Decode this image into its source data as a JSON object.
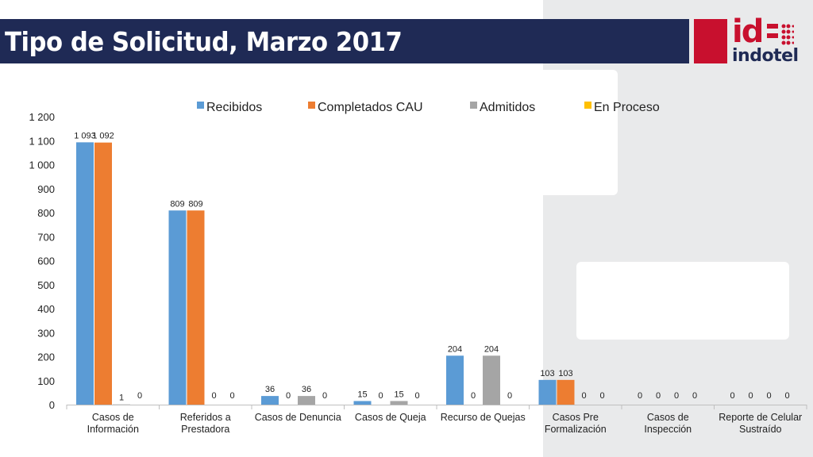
{
  "slide": {
    "title": "Tipo de Solicitud, Marzo 2017",
    "logo_text": "indotel",
    "logo_mark": "id",
    "brand_color": "#c8102e",
    "title_bar_color": "#1f2a55"
  },
  "chart_data": {
    "type": "bar",
    "title": "",
    "xlabel": "",
    "ylabel": "",
    "ylim": [
      0,
      1200
    ],
    "yticks": [
      0,
      100,
      200,
      300,
      400,
      500,
      600,
      700,
      800,
      900,
      1000,
      1100,
      1200
    ],
    "ytick_labels": [
      "0",
      "100",
      "200",
      "300",
      "400",
      "500",
      "600",
      "700",
      "800",
      "900",
      "1 000",
      "1 100",
      "1 200"
    ],
    "grid": false,
    "legend_position": "top",
    "categories": [
      [
        "Casos de",
        "Información"
      ],
      [
        "Referidos a",
        "Prestadora"
      ],
      [
        "Casos de Denuncia"
      ],
      [
        "Casos de Queja"
      ],
      [
        "Recurso de Quejas"
      ],
      [
        "Casos Pre",
        "Formalización"
      ],
      [
        "Casos de",
        "Inspección"
      ],
      [
        "Reporte de Celular",
        "Sustraído"
      ]
    ],
    "series": [
      {
        "name": "Recibidos",
        "color": "#5b9bd5",
        "values": [
          1093,
          809,
          36,
          15,
          204,
          103,
          0,
          0
        ],
        "labels": [
          "1 093",
          "809",
          "36",
          "15",
          "204",
          "103",
          "0",
          "0"
        ]
      },
      {
        "name": "Completados CAU",
        "color": "#ed7d31",
        "values": [
          1092,
          809,
          0,
          0,
          0,
          103,
          0,
          0
        ],
        "labels": [
          "1 092",
          "809",
          "0",
          "0",
          "0",
          "103",
          "0",
          "0"
        ]
      },
      {
        "name": "Admitidos",
        "color": "#a5a5a5",
        "values": [
          1,
          0,
          36,
          15,
          204,
          0,
          0,
          0
        ],
        "labels": [
          "1",
          "0",
          "36",
          "15",
          "204",
          "0",
          "0",
          "0"
        ]
      },
      {
        "name": "En Proceso",
        "color": "#ffc000",
        "values": [
          0,
          0,
          0,
          0,
          0,
          0,
          0,
          0
        ],
        "labels": [
          "0",
          "0",
          "0",
          "0",
          "0",
          "0",
          "0",
          "0"
        ]
      }
    ]
  }
}
